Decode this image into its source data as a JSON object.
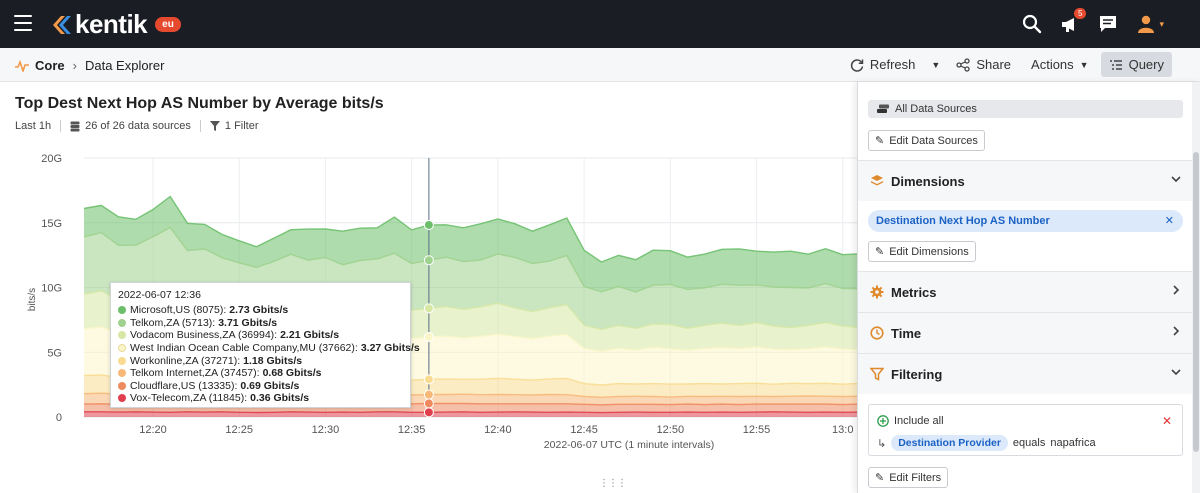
{
  "header": {
    "brand": "kentik",
    "region_badge": "eu",
    "notification_count": "5"
  },
  "breadcrumb": {
    "root": "Core",
    "current": "Data Explorer"
  },
  "toolbar": {
    "refresh": "Refresh",
    "share": "Share",
    "actions": "Actions",
    "query": "Query"
  },
  "page": {
    "title": "Top Dest Next Hop AS Number by Average bits/s",
    "time_range": "Last 1h",
    "data_sources": "26 of 26 data sources",
    "filters": "1 Filter"
  },
  "tooltip": {
    "date": "2022-06-07 12:36",
    "rows": [
      {
        "label": "Microsoft,US (8075):",
        "value": "2.73 Gbits/s",
        "color": "#6cbf6a"
      },
      {
        "label": "Telkom,ZA (5713):",
        "value": "3.71 Gbits/s",
        "color": "#9fd28e"
      },
      {
        "label": "Vodacom Business,ZA (36994):",
        "value": "2.21 Gbits/s",
        "color": "#d6e8a4"
      },
      {
        "label": "West Indian Ocean Cable Company,MU (37662):",
        "value": "3.27 Gbits/s",
        "color": "#fbf6c9"
      },
      {
        "label": "Workonline,ZA (37271):",
        "value": "1.18 Gbits/s",
        "color": "#f9dc92"
      },
      {
        "label": "Telkom Internet,ZA (37457):",
        "value": "0.68 Gbits/s",
        "color": "#f7b878"
      },
      {
        "label": "Cloudflare,US (13335):",
        "value": "0.69 Gbits/s",
        "color": "#ee8a5e"
      },
      {
        "label": "Vox-Telecom,ZA (11845):",
        "value": "0.36 Gbits/s",
        "color": "#e0404e"
      }
    ]
  },
  "chart_data": {
    "type": "area",
    "ylabel": "bits/s",
    "xlabel": "2022-06-07 UTC (1 minute intervals)",
    "ylim": [
      0,
      20
    ],
    "yticks": [
      "0",
      "5G",
      "10G",
      "15G",
      "20G"
    ],
    "xticks": [
      "12:20",
      "12:25",
      "12:30",
      "12:35",
      "12:40",
      "12:45",
      "12:50",
      "12:55",
      "13:0"
    ],
    "grid": true,
    "x": [
      "12:16",
      "12:17",
      "12:18",
      "12:19",
      "12:20",
      "12:21",
      "12:22",
      "12:23",
      "12:24",
      "12:25",
      "12:26",
      "12:27",
      "12:28",
      "12:29",
      "12:30",
      "12:31",
      "12:32",
      "12:33",
      "12:34",
      "12:35",
      "12:36",
      "12:37",
      "12:38",
      "12:39",
      "12:40",
      "12:41",
      "12:42",
      "12:43",
      "12:44",
      "12:45",
      "12:46",
      "12:47",
      "12:48",
      "12:49",
      "12:50",
      "12:51",
      "12:52",
      "12:53",
      "12:54",
      "12:55",
      "12:56",
      "12:57",
      "12:58",
      "12:59",
      "13:00",
      "13:01"
    ],
    "highlight_x": "12:36",
    "series": [
      {
        "name": "Vox-Telecom,ZA (11845)",
        "color": "#e0404e",
        "values": [
          0.4,
          0.4,
          0.38,
          0.4,
          0.38,
          0.36,
          0.4,
          0.38,
          0.4,
          0.36,
          0.35,
          0.36,
          0.4,
          0.38,
          0.36,
          0.38,
          0.36,
          0.4,
          0.4,
          0.36,
          0.36,
          0.38,
          0.4,
          0.36,
          0.38,
          0.4,
          0.38,
          0.36,
          0.38,
          0.36,
          0.34,
          0.36,
          0.38,
          0.36,
          0.36,
          0.38,
          0.36,
          0.38,
          0.36,
          0.38,
          0.4,
          0.38,
          0.36,
          0.38,
          0.36,
          0.38
        ]
      },
      {
        "name": "Cloudflare,US (13335)",
        "color": "#ee8a5e",
        "values": [
          0.6,
          0.62,
          0.6,
          0.62,
          0.6,
          0.62,
          0.58,
          0.62,
          0.6,
          0.62,
          0.64,
          0.6,
          0.62,
          0.6,
          0.64,
          0.62,
          0.6,
          0.62,
          0.64,
          0.66,
          0.69,
          0.66,
          0.64,
          0.66,
          0.64,
          0.62,
          0.64,
          0.66,
          0.64,
          0.62,
          0.6,
          0.62,
          0.6,
          0.62,
          0.6,
          0.62,
          0.6,
          0.62,
          0.6,
          0.62,
          0.6,
          0.62,
          0.64,
          0.62,
          0.6,
          0.62
        ]
      },
      {
        "name": "Telkom Internet,ZA (37457)",
        "color": "#f7b878",
        "values": [
          0.8,
          0.82,
          0.78,
          0.8,
          0.84,
          0.8,
          0.78,
          0.82,
          0.8,
          0.78,
          0.76,
          0.8,
          0.74,
          0.78,
          0.72,
          0.7,
          0.72,
          0.74,
          0.7,
          0.68,
          0.68,
          0.7,
          0.72,
          0.7,
          0.72,
          0.7,
          0.68,
          0.72,
          0.7,
          0.6,
          0.58,
          0.6,
          0.62,
          0.6,
          0.58,
          0.6,
          0.62,
          0.6,
          0.62,
          0.6,
          0.58,
          0.6,
          0.62,
          0.6,
          0.62,
          0.6
        ]
      },
      {
        "name": "Workonline,ZA (37271)",
        "color": "#f9dc92",
        "values": [
          1.4,
          1.4,
          1.3,
          1.35,
          1.4,
          1.45,
          1.3,
          1.35,
          1.3,
          1.25,
          1.2,
          1.25,
          1.2,
          1.25,
          1.2,
          1.15,
          1.2,
          1.25,
          1.2,
          1.15,
          1.18,
          1.2,
          1.15,
          1.2,
          1.25,
          1.2,
          1.15,
          1.2,
          1.25,
          1.0,
          0.95,
          1.0,
          0.95,
          1.0,
          1.0,
          0.95,
          1.0,
          0.95,
          1.0,
          1.0,
          0.95,
          1.0,
          0.95,
          1.0,
          0.95,
          1.0
        ]
      },
      {
        "name": "West Indian Ocean Cable Company,MU (37662)",
        "color": "#fbf6c9",
        "values": [
          3.6,
          3.7,
          3.4,
          3.5,
          3.6,
          3.7,
          3.4,
          3.5,
          3.3,
          3.2,
          3.1,
          3.2,
          3.4,
          3.2,
          3.3,
          3.1,
          3.2,
          3.3,
          3.4,
          3.2,
          3.27,
          3.3,
          3.2,
          3.3,
          3.4,
          3.3,
          3.2,
          3.3,
          3.4,
          2.7,
          2.6,
          2.7,
          2.6,
          2.8,
          2.7,
          2.6,
          2.7,
          2.8,
          2.7,
          2.8,
          2.7,
          2.6,
          2.7,
          2.8,
          2.7,
          2.6
        ]
      },
      {
        "name": "Vodacom Business,ZA (36994)",
        "color": "#d6e8a4",
        "values": [
          2.7,
          2.8,
          2.6,
          2.5,
          2.7,
          2.9,
          2.4,
          2.5,
          2.3,
          2.2,
          2.1,
          2.2,
          2.4,
          2.3,
          2.2,
          2.1,
          2.2,
          2.3,
          2.4,
          2.2,
          2.21,
          2.3,
          2.2,
          2.3,
          2.4,
          2.2,
          2.1,
          2.2,
          2.3,
          1.8,
          1.7,
          1.8,
          1.7,
          1.8,
          1.9,
          1.7,
          1.8,
          1.9,
          1.8,
          1.9,
          1.8,
          1.7,
          1.8,
          1.9,
          1.8,
          1.7
        ]
      },
      {
        "name": "Telkom,ZA (5713)",
        "color": "#9fd28e",
        "values": [
          4.4,
          4.5,
          4.2,
          4.1,
          4.4,
          4.8,
          4.0,
          3.8,
          3.6,
          3.5,
          3.4,
          3.6,
          3.8,
          3.6,
          3.9,
          3.7,
          3.8,
          3.6,
          3.9,
          3.6,
          3.71,
          3.8,
          3.7,
          3.6,
          3.8,
          3.9,
          3.7,
          3.6,
          3.8,
          3.0,
          2.9,
          3.0,
          2.8,
          3.0,
          3.1,
          3.0,
          2.9,
          3.0,
          3.1,
          2.9,
          3.0,
          3.1,
          2.9,
          3.0,
          2.9,
          3.0
        ]
      },
      {
        "name": "Microsoft,US (8075)",
        "color": "#6cbf6a",
        "values": [
          2.2,
          2.1,
          2.2,
          2.0,
          2.1,
          2.4,
          2.1,
          1.9,
          1.8,
          1.7,
          1.6,
          1.8,
          1.9,
          2.4,
          2.2,
          2.6,
          2.5,
          2.4,
          2.8,
          2.6,
          2.73,
          2.5,
          2.6,
          2.8,
          2.7,
          2.6,
          2.5,
          2.8,
          2.9,
          2.8,
          2.3,
          2.4,
          2.5,
          2.7,
          2.6,
          2.5,
          2.6,
          2.7,
          2.8,
          2.6,
          2.7,
          2.8,
          2.6,
          2.7,
          2.6,
          2.7
        ]
      }
    ]
  },
  "panel": {
    "all_sources": "All Data Sources",
    "edit_sources": "Edit Data Sources",
    "dimensions": "Dimensions",
    "dimension_chip": "Destination Next Hop AS Number",
    "edit_dimensions": "Edit Dimensions",
    "metrics": "Metrics",
    "time": "Time",
    "filtering": "Filtering",
    "include_all": "Include all",
    "filter_field": "Destination Provider",
    "filter_op": "equals",
    "filter_value": "napafrica",
    "edit_filters": "Edit Filters"
  }
}
